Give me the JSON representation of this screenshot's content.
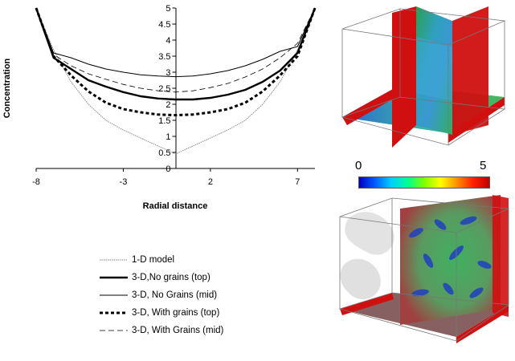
{
  "chart_data": {
    "type": "line",
    "title": "",
    "xlabel": "Radial distance",
    "ylabel": "Concentration",
    "xlim": [
      -8,
      8
    ],
    "ylim": [
      0,
      5
    ],
    "xticks": [
      "-8",
      "-3",
      "2",
      "7"
    ],
    "yticks": [
      "0",
      "0.5",
      "1",
      "1.5",
      "2",
      "2.5",
      "3",
      "3.5",
      "4",
      "4.5",
      "5"
    ],
    "grid": false,
    "legend_position": "below",
    "series": [
      {
        "name": "1-D model",
        "style": "dotted-thin",
        "color": "#888888",
        "x": [
          -8,
          -7,
          -6,
          -5,
          -4,
          -3,
          -2,
          -1,
          0,
          1,
          2,
          3,
          4,
          5,
          6,
          7,
          8
        ],
        "y": [
          5.0,
          3.7,
          2.7,
          2.0,
          1.5,
          1.2,
          0.95,
          0.7,
          0.45,
          0.7,
          0.95,
          1.2,
          1.5,
          2.0,
          2.7,
          3.7,
          5.0
        ]
      },
      {
        "name": "3-D,No grains (top)",
        "style": "solid-thick",
        "color": "#000000",
        "x": [
          -8,
          -7,
          -6,
          -5,
          -4,
          -3,
          -2,
          -1,
          0,
          1,
          2,
          3,
          4,
          5,
          6,
          7,
          8
        ],
        "y": [
          5.0,
          3.45,
          3.1,
          2.75,
          2.55,
          2.38,
          2.25,
          2.18,
          2.15,
          2.15,
          2.2,
          2.3,
          2.45,
          2.7,
          3.05,
          3.6,
          5.0
        ]
      },
      {
        "name": "3-D, No Grains (mid)",
        "style": "solid-thin",
        "color": "#000000",
        "x": [
          -8,
          -7,
          -6,
          -5,
          -4,
          -3,
          -2,
          -1,
          0,
          1,
          2,
          3,
          4,
          5,
          6,
          7,
          8
        ],
        "y": [
          5.0,
          3.6,
          3.45,
          3.25,
          3.1,
          3.0,
          2.92,
          2.88,
          2.86,
          2.88,
          2.95,
          3.05,
          3.2,
          3.4,
          3.65,
          3.8,
          5.0
        ]
      },
      {
        "name": "3-D, With grains (top)",
        "style": "dashed-thick",
        "color": "#000000",
        "x": [
          -8,
          -7,
          -6,
          -5,
          -4,
          -3,
          -2,
          -1,
          0,
          1,
          2,
          3,
          4,
          5,
          6,
          7,
          8
        ],
        "y": [
          5.0,
          3.5,
          2.9,
          2.4,
          2.05,
          1.85,
          1.75,
          1.68,
          1.66,
          1.68,
          1.75,
          1.85,
          2.05,
          2.4,
          2.9,
          3.5,
          5.0
        ]
      },
      {
        "name": "3-D, With Grains (mid)",
        "style": "dashed-thin",
        "color": "#000000",
        "x": [
          -8,
          -7,
          -6,
          -5,
          -4,
          -3,
          -2,
          -1,
          0,
          1,
          2,
          3,
          4,
          5,
          6,
          7,
          8
        ],
        "y": [
          5.0,
          3.55,
          3.2,
          2.95,
          2.78,
          2.62,
          2.5,
          2.42,
          2.38,
          2.42,
          2.52,
          2.65,
          2.85,
          3.1,
          3.45,
          3.9,
          5.0
        ]
      }
    ]
  },
  "colorbar": {
    "min_label": "0",
    "max_label": "5"
  },
  "colors": {
    "band_red": "#d01010",
    "mid_green": "#3aa84a",
    "edge_blue": "#2858c8"
  }
}
